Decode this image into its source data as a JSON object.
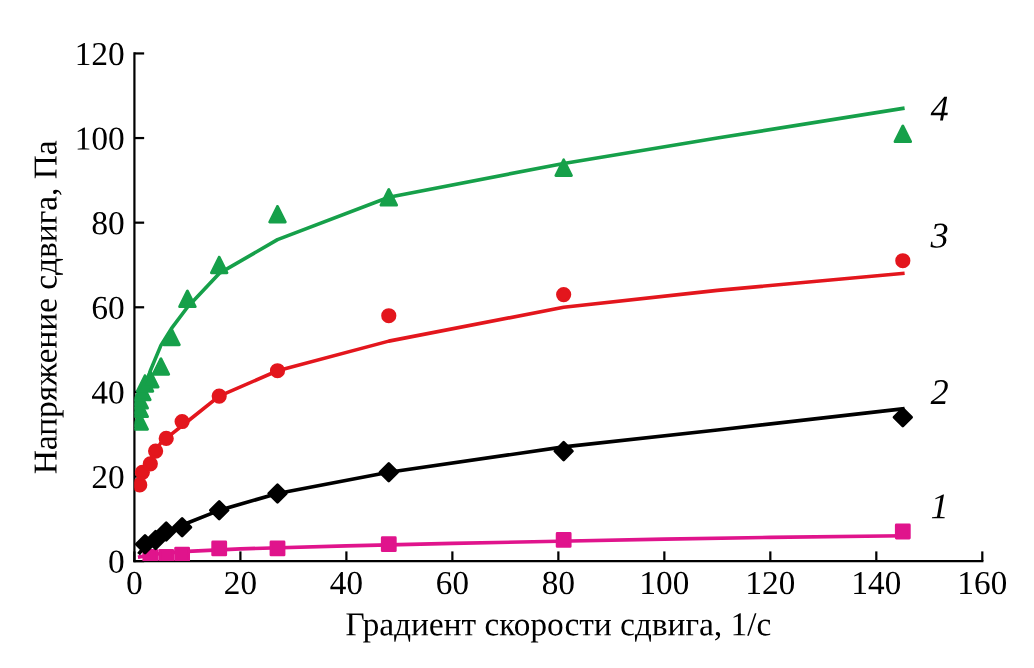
{
  "chart_data": {
    "type": "scatter",
    "xlabel": "Градиент скорости сдвига, 1/с",
    "ylabel": "Напряжение сдвига, Па",
    "xlim": [
      0,
      160
    ],
    "xticks": [
      0,
      20,
      40,
      60,
      80,
      100,
      120,
      140,
      160
    ],
    "ylim": [
      0,
      120
    ],
    "yticks": [
      0,
      20,
      40,
      60,
      80,
      100,
      120
    ],
    "grid": false,
    "legend": false,
    "series": [
      {
        "name": "1",
        "marker": "square",
        "color": "#e0148c",
        "x": [
          3,
          6,
          9,
          16,
          27,
          48,
          81,
          145
        ],
        "values": [
          1,
          1,
          1.5,
          3,
          3,
          4,
          5,
          7
        ]
      },
      {
        "type": "line",
        "marker": "none",
        "color": "#e0148c",
        "x": [
          1,
          5,
          10,
          20,
          40,
          60,
          80,
          100,
          120,
          145
        ],
        "values": [
          1,
          1.8,
          2.3,
          2.9,
          3.6,
          4.2,
          4.7,
          5.2,
          5.6,
          6
        ]
      },
      {
        "name": "2",
        "marker": "diamond",
        "color": "#000000",
        "x": [
          2,
          4,
          6,
          9,
          16,
          27,
          48,
          81,
          145
        ],
        "values": [
          4,
          5,
          7,
          8,
          12,
          16,
          21,
          26,
          34
        ]
      },
      {
        "type": "line",
        "marker": "none",
        "color": "#000000",
        "x": [
          1,
          3,
          6,
          10,
          16,
          27,
          48,
          81,
          110,
          145
        ],
        "values": [
          2,
          5,
          7,
          9,
          12,
          16,
          21,
          27,
          31,
          36
        ]
      },
      {
        "name": "3",
        "marker": "circle",
        "color": "#e3161d",
        "x": [
          1,
          1.5,
          3,
          4,
          6,
          9,
          16,
          27,
          48,
          81,
          145
        ],
        "values": [
          18,
          21,
          23,
          26,
          29,
          33,
          39,
          45,
          58,
          63,
          71
        ]
      },
      {
        "type": "line",
        "marker": "none",
        "color": "#e3161d",
        "x": [
          1,
          2,
          3,
          5,
          7,
          10,
          16,
          27,
          48,
          81,
          110,
          145
        ],
        "values": [
          19,
          22,
          24,
          28,
          30,
          33,
          39,
          45,
          52,
          60,
          64,
          68
        ]
      },
      {
        "name": "4",
        "marker": "triangle",
        "color": "#16a04a",
        "x": [
          1,
          1,
          1,
          1.5,
          2,
          3,
          5,
          7,
          10,
          16,
          27,
          48,
          81,
          145
        ],
        "values": [
          33,
          36,
          38,
          40,
          42,
          43,
          46,
          53,
          62,
          70,
          82,
          86,
          93,
          101
        ]
      },
      {
        "type": "line",
        "marker": "none",
        "color": "#16a04a",
        "x": [
          1,
          2,
          3,
          5,
          7,
          10,
          16,
          27,
          48,
          81,
          110,
          145
        ],
        "values": [
          35,
          41,
          45,
          51,
          55,
          60,
          68,
          76,
          86,
          94,
          100,
          107
        ]
      }
    ]
  }
}
